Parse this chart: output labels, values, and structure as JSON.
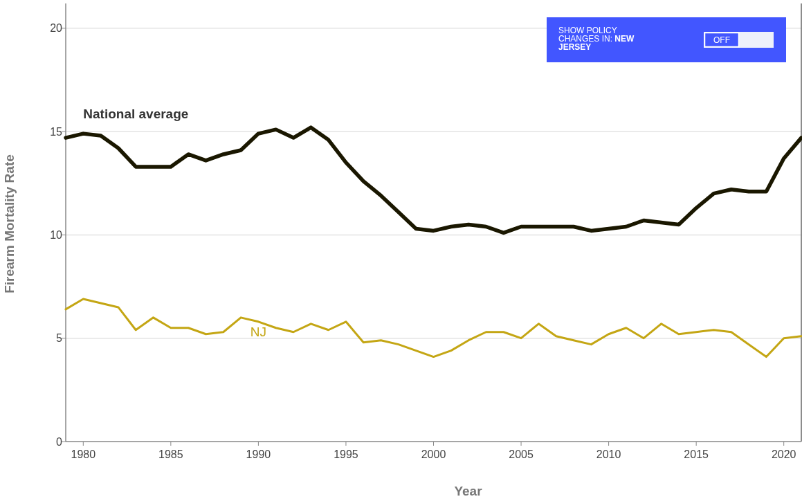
{
  "chart_data": {
    "type": "line",
    "xlabel": "Year",
    "ylabel": "Firearm Mortality Rate",
    "x": [
      1979,
      1980,
      1981,
      1982,
      1983,
      1984,
      1985,
      1986,
      1987,
      1988,
      1989,
      1990,
      1991,
      1992,
      1993,
      1994,
      1995,
      1996,
      1997,
      1998,
      1999,
      2000,
      2001,
      2002,
      2003,
      2004,
      2005,
      2006,
      2007,
      2008,
      2009,
      2010,
      2011,
      2012,
      2013,
      2014,
      2015,
      2016,
      2017,
      2018,
      2019,
      2020,
      2021
    ],
    "series": [
      {
        "name": "National average",
        "color": "#1a1700",
        "values": [
          14.7,
          14.9,
          14.8,
          14.2,
          13.3,
          13.3,
          13.3,
          13.9,
          13.6,
          13.9,
          14.1,
          14.9,
          15.1,
          14.7,
          15.2,
          14.6,
          13.5,
          12.6,
          11.9,
          11.1,
          10.3,
          10.2,
          10.4,
          10.5,
          10.4,
          10.1,
          10.4,
          10.4,
          10.4,
          10.4,
          10.2,
          10.3,
          10.4,
          10.7,
          10.6,
          10.5,
          11.3,
          12.0,
          12.2,
          12.1,
          12.1,
          13.7,
          14.7
        ]
      },
      {
        "name": "NJ",
        "color": "#c4a614",
        "values": [
          6.4,
          6.9,
          6.7,
          6.5,
          5.4,
          6.0,
          5.5,
          5.5,
          5.2,
          5.3,
          6.0,
          5.8,
          5.5,
          5.3,
          5.7,
          5.4,
          5.8,
          4.8,
          4.9,
          4.7,
          4.4,
          4.1,
          4.4,
          4.9,
          5.3,
          5.3,
          5.0,
          5.7,
          5.1,
          4.9,
          4.7,
          5.2,
          5.5,
          5.0,
          5.7,
          5.2,
          5.3,
          5.4,
          5.3,
          4.7,
          4.1,
          5.0,
          5.1
        ]
      }
    ],
    "xlim": [
      1979,
      2021
    ],
    "xticks": [
      1980,
      1985,
      1990,
      1995,
      2000,
      2005,
      2010,
      2015,
      2020
    ],
    "ylim": [
      0,
      21.2
    ],
    "yticks": [
      0,
      5,
      10,
      15,
      20
    ],
    "grid": "y",
    "annotations": [
      "SHOW POLICY CHANGES IN: NEW JERSEY",
      "OFF"
    ]
  }
}
